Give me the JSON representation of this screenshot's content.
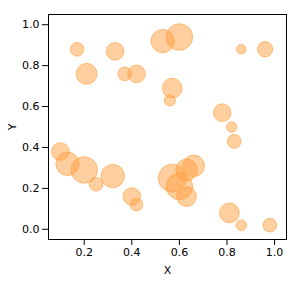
{
  "chart_data": {
    "type": "bubble",
    "xlabel": "X",
    "ylabel": "Y",
    "x": [
      0.17,
      0.21,
      0.33,
      0.37,
      0.42,
      0.1,
      0.13,
      0.2,
      0.25,
      0.32,
      0.4,
      0.42,
      0.53,
      0.6,
      0.57,
      0.56,
      0.57,
      0.6,
      0.63,
      0.66,
      0.63,
      0.78,
      0.82,
      0.83,
      0.81,
      0.86,
      0.86,
      0.96,
      0.98
    ],
    "y": [
      0.88,
      0.76,
      0.87,
      0.76,
      0.76,
      0.38,
      0.32,
      0.29,
      0.22,
      0.26,
      0.16,
      0.12,
      0.92,
      0.94,
      0.69,
      0.63,
      0.25,
      0.21,
      0.29,
      0.31,
      0.16,
      0.57,
      0.5,
      0.43,
      0.08,
      0.02,
      0.88,
      0.88,
      0.02
    ],
    "sizes": [
      120,
      280,
      200,
      120,
      200,
      200,
      350,
      450,
      120,
      350,
      200,
      100,
      350,
      450,
      250,
      80,
      500,
      450,
      300,
      300,
      250,
      200,
      70,
      120,
      250,
      70,
      60,
      150,
      120
    ],
    "color": "#FFA040",
    "xlim": [
      0.05,
      1.05
    ],
    "ylim": [
      -0.05,
      1.05
    ],
    "xticks": [
      0.2,
      0.4,
      0.6,
      0.8,
      {
        "value": 1,
        "label": "1.0"
      }
    ],
    "yticks": [
      {
        "value": 0,
        "label": "0.0"
      },
      0.2,
      0.4,
      0.6,
      0.8,
      {
        "value": 1,
        "label": "1.0"
      }
    ],
    "grid": false
  }
}
